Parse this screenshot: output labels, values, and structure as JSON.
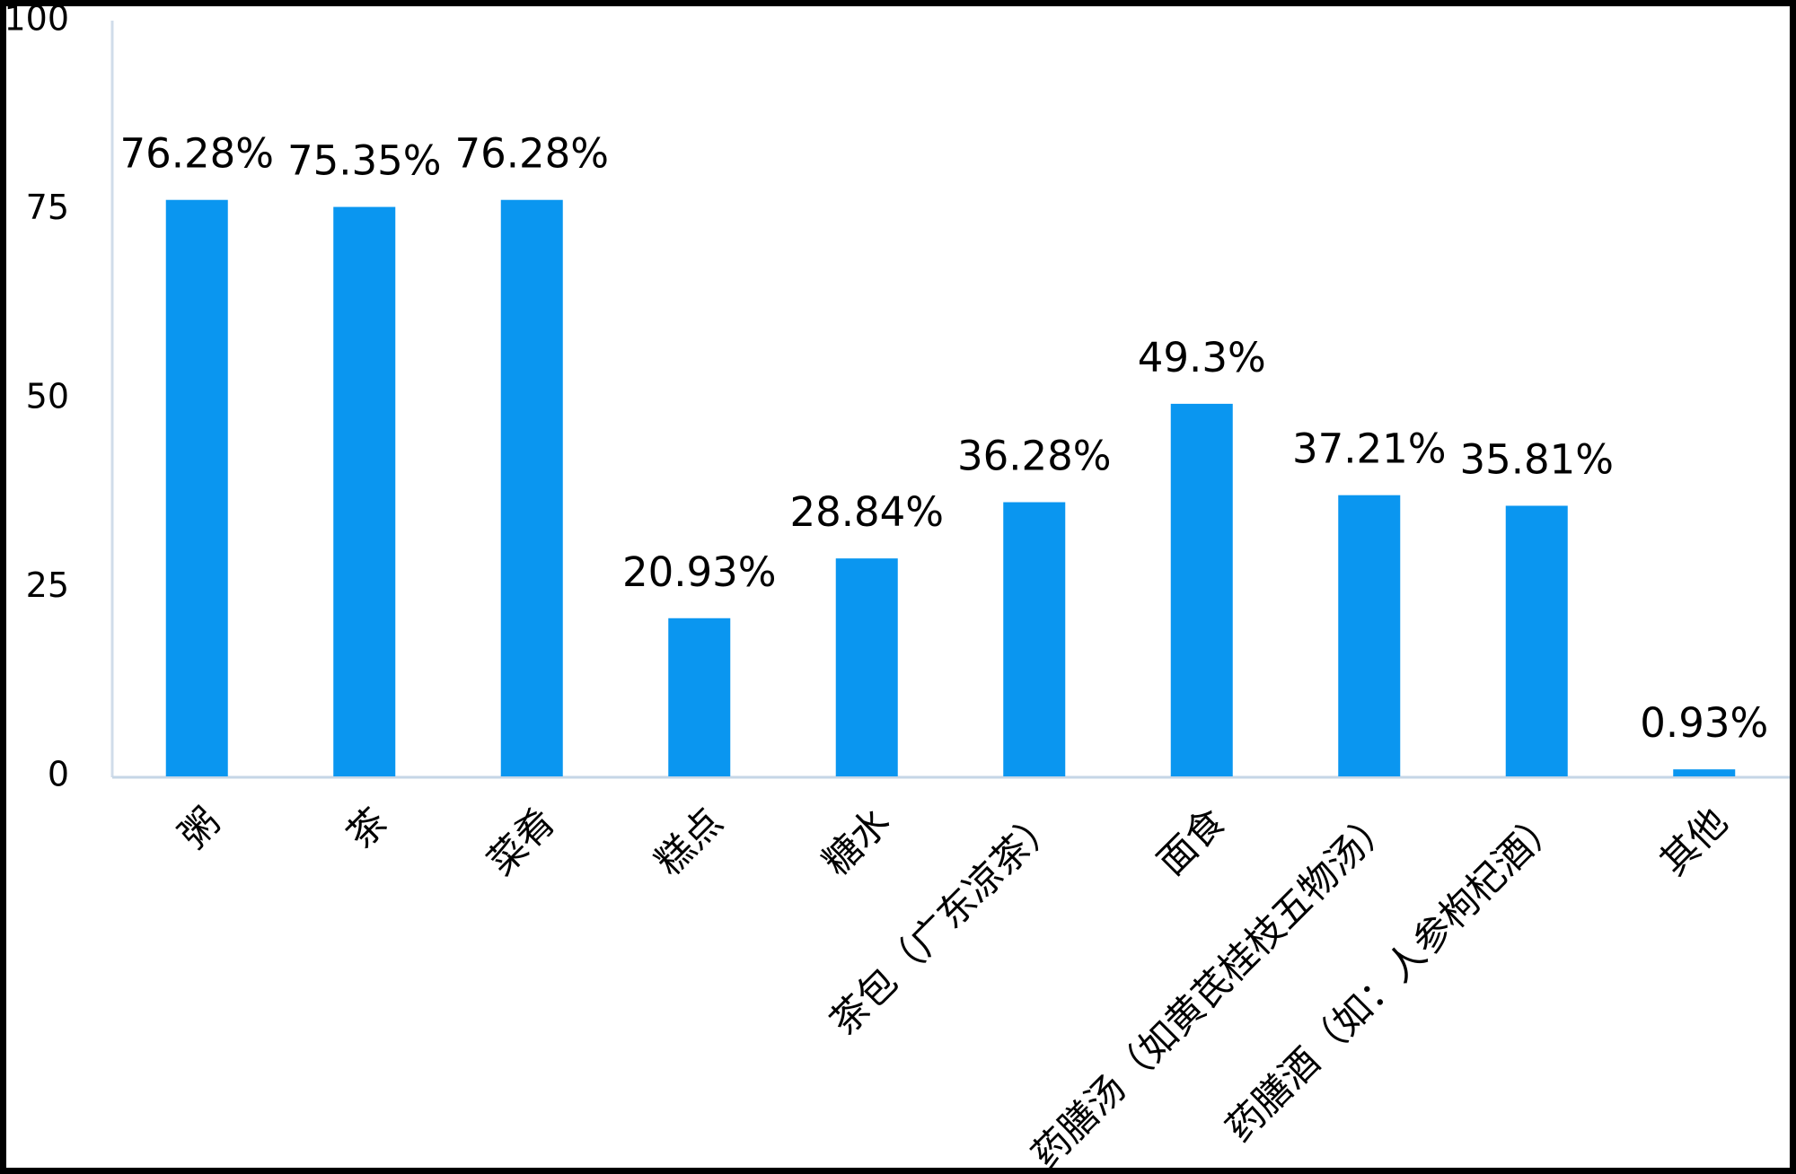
{
  "chart_data": {
    "type": "bar",
    "categories": [
      "粥",
      "茶",
      "菜肴",
      "糕点",
      "糖水",
      "茶包（广东凉茶）",
      "面食",
      "药膳汤（如黄芪桂枝五物汤）",
      "药膳酒（如：人参枸杞酒）",
      "其他"
    ],
    "values": [
      76.28,
      75.35,
      76.28,
      20.93,
      28.84,
      36.28,
      49.3,
      37.21,
      35.81,
      0.93
    ],
    "value_labels": [
      "76.28%",
      "75.35%",
      "76.28%",
      "20.93%",
      "28.84%",
      "36.28%",
      "49.3%",
      "37.21%",
      "35.81%",
      "0.93%"
    ],
    "color": "#0a96f0",
    "ylim": [
      0,
      100
    ],
    "yticks": [
      0,
      25,
      50,
      75,
      100
    ],
    "grid": false
  }
}
